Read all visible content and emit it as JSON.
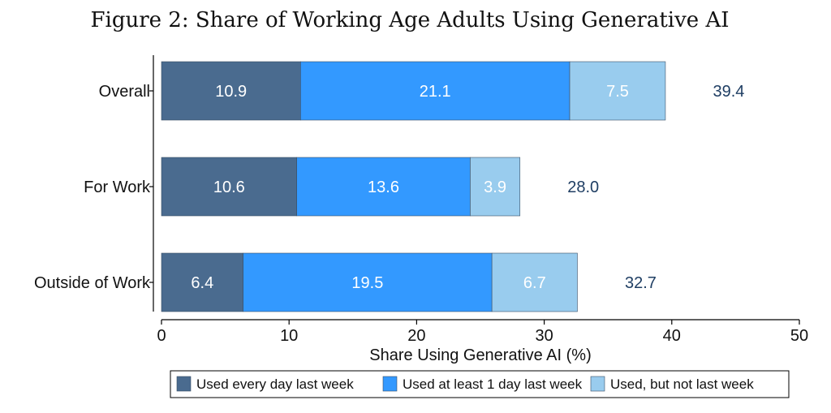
{
  "figure": {
    "title": "Figure 2: Share of Working Age Adults Using Generative AI"
  },
  "chart_data": {
    "type": "bar",
    "orientation": "horizontal",
    "stacked": true,
    "categories": [
      "Overall",
      "For Work",
      "Outside of Work"
    ],
    "series": [
      {
        "name": "Used every day last week",
        "values": [
          10.9,
          10.6,
          6.4
        ],
        "color": "#4a6b8f",
        "label_color": "#ffffff"
      },
      {
        "name": "Used at least 1 day last week",
        "values": [
          21.1,
          13.6,
          19.5
        ],
        "color": "#3399ff",
        "label_color": "#ffffff"
      },
      {
        "name": "Used, but not last week",
        "values": [
          7.5,
          3.9,
          6.7
        ],
        "color": "#99ccee",
        "label_color": "#ffffff"
      }
    ],
    "totals": [
      "39.4",
      "28.0",
      "32.7"
    ],
    "total_color": "#1f3e63",
    "xlabel": "Share Using Generative AI (%)",
    "ylabel": "",
    "xlim": [
      0,
      50
    ],
    "xticks": [
      0,
      10,
      20,
      30,
      40,
      50
    ],
    "grid": false,
    "legend_position": "bottom"
  }
}
